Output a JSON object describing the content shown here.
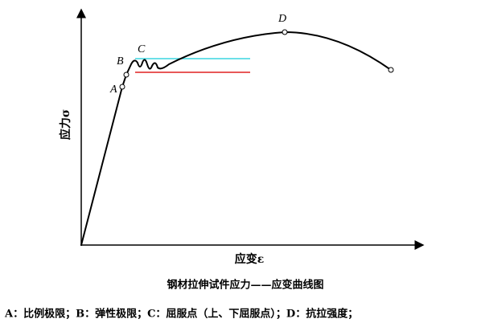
{
  "diagram": {
    "points": [
      {
        "label": "A"
      },
      {
        "label": "B"
      },
      {
        "label": "C"
      },
      {
        "label": "D"
      }
    ],
    "y_axis_label": "应力σ",
    "x_axis_label": "应变ε",
    "caption": "钢材拉伸试件应力——应变曲线图",
    "legend": "A：比例极限；B：弹性极限；C：屈服点（上、下屈服点）；D：抗拉强度；"
  }
}
